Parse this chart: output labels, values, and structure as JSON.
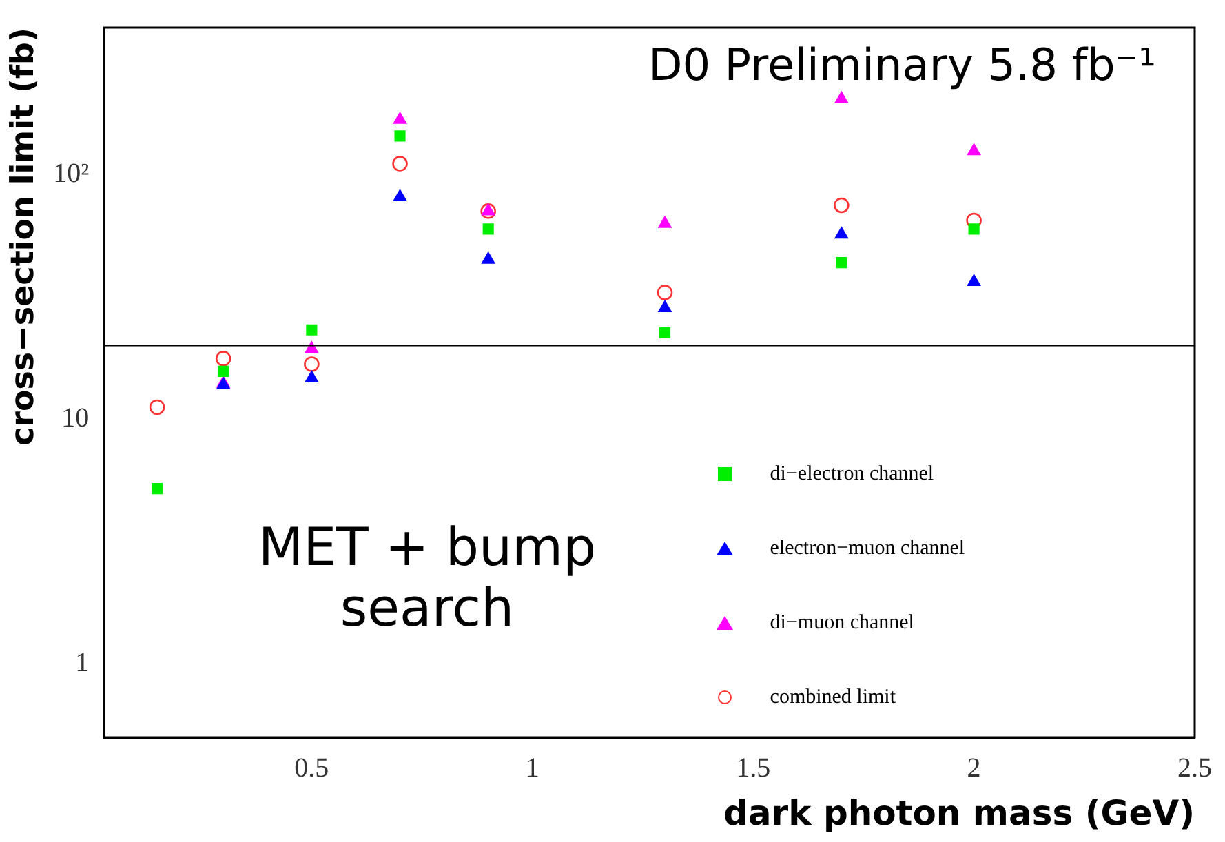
{
  "chart_data": {
    "type": "scatter",
    "xlabel": "dark photon mass (GeV)",
    "ylabel": "cross−section limit (fb)",
    "log": "y",
    "xlim": [
      0.03,
      2.5
    ],
    "xticks": [
      0.5,
      1,
      1.5,
      2,
      2.5
    ],
    "ylim": [
      0.5,
      400
    ],
    "yticks": [
      1,
      10,
      {
        "value": 100,
        "label": "10²"
      }
    ],
    "grid": false,
    "legend": "bottom right",
    "x": [
      0.15,
      0.3,
      0.5,
      0.7,
      0.9,
      1.3,
      1.7,
      2.0
    ],
    "series": [
      {
        "name": "di−electron channel",
        "color": "#00ee00",
        "marker": "square",
        "values": [
          5.2,
          15.7,
          23.2,
          144,
          60,
          22.6,
          43.7,
          60
        ]
      },
      {
        "name": "electron−muon channel",
        "color": "#0000ff",
        "marker": "triangle",
        "values": [
          null,
          13.8,
          14.7,
          81,
          45,
          28.5,
          57,
          36.5
        ]
      },
      {
        "name": "di−muon channel",
        "color": "#ff00ff",
        "marker": "triangle",
        "values": [
          null,
          14,
          19.4,
          168,
          71,
          63,
          204,
          125
        ]
      },
      {
        "name": "combined limit",
        "color": "#ff3333",
        "marker": "circle",
        "values": [
          11.2,
          17.7,
          16.8,
          111,
          71,
          33,
          75,
          65
        ]
      }
    ],
    "ref_lines": [
      {
        "axis": "y",
        "value": 20,
        "color": "#000000"
      }
    ],
    "annotations": [
      "D0 Preliminary 5.8 fb⁻¹",
      "MET + bump search"
    ]
  }
}
